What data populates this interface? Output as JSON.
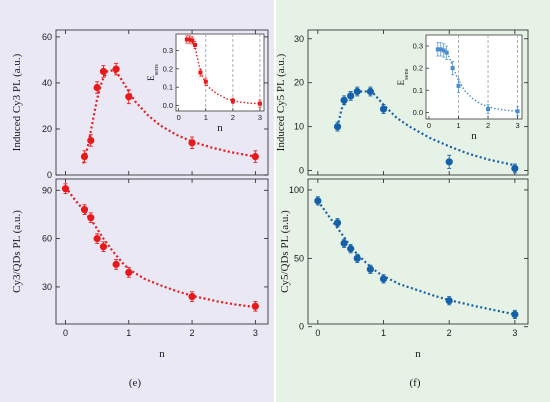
{
  "colors": {
    "left_background": "#eae8f5",
    "right_background": "#e6f2e6",
    "red": "#e8191b",
    "blue": "#1560a8",
    "inset_red": "#e8191b",
    "inset_blue": "#4a8ccc",
    "axis": "#222222",
    "dashed_line": "#999999"
  },
  "panel_labels": [
    "(e)",
    "(f)"
  ],
  "chart_data": [
    {
      "id": "e-top",
      "type": "scatter",
      "color": "red",
      "ylabel": "Induced Cy3 PL (a.u.)",
      "xlabel": "",
      "xlim": [
        -0.15,
        3.2
      ],
      "ylim": [
        0,
        63
      ],
      "xticks": [
        0,
        1,
        2,
        3
      ],
      "yticks": [
        0,
        20,
        40,
        60
      ],
      "show_xtick_labels": false,
      "points": [
        {
          "x": 0.3,
          "y": 8,
          "err": 2.5
        },
        {
          "x": 0.4,
          "y": 15,
          "err": 2.5
        },
        {
          "x": 0.5,
          "y": 38,
          "err": 2.5
        },
        {
          "x": 0.6,
          "y": 45,
          "err": 2.5
        },
        {
          "x": 0.8,
          "y": 46,
          "err": 2.5
        },
        {
          "x": 1.0,
          "y": 34,
          "err": 3
        },
        {
          "x": 2.0,
          "y": 14,
          "err": 2.5
        },
        {
          "x": 3.0,
          "y": 8,
          "err": 2.5
        }
      ],
      "fit": [
        [
          0.28,
          5
        ],
        [
          0.35,
          12
        ],
        [
          0.42,
          22
        ],
        [
          0.5,
          33
        ],
        [
          0.58,
          41
        ],
        [
          0.66,
          45
        ],
        [
          0.75,
          45.5
        ],
        [
          0.85,
          43
        ],
        [
          0.95,
          38.5
        ],
        [
          1.1,
          32
        ],
        [
          1.3,
          26
        ],
        [
          1.5,
          21.5
        ],
        [
          1.75,
          17.5
        ],
        [
          2.0,
          14.5
        ],
        [
          2.3,
          12
        ],
        [
          2.6,
          10
        ],
        [
          3.0,
          8
        ]
      ],
      "inset": {
        "ylabel": "E_sens",
        "xlabel": "n",
        "xlim": [
          -0.1,
          3.15
        ],
        "ylim": [
          -0.03,
          0.39
        ],
        "xticks": [
          0,
          1,
          2,
          3
        ],
        "yticks": [
          0.0,
          0.1,
          0.2,
          0.3
        ],
        "ytick_labels": [
          "0.0",
          "0.1",
          "0.2",
          "0.3"
        ],
        "dashed_x": [
          1,
          2,
          3
        ],
        "points": [
          {
            "x": 0.3,
            "y": 0.36,
            "err": 0.02
          },
          {
            "x": 0.4,
            "y": 0.36,
            "err": 0.02
          },
          {
            "x": 0.5,
            "y": 0.355,
            "err": 0.02
          },
          {
            "x": 0.6,
            "y": 0.33,
            "err": 0.02
          },
          {
            "x": 0.8,
            "y": 0.18,
            "err": 0.02
          },
          {
            "x": 1.0,
            "y": 0.13,
            "err": 0.02
          },
          {
            "x": 2.0,
            "y": 0.025,
            "err": 0.015
          },
          {
            "x": 3.0,
            "y": 0.01,
            "err": 0.02
          }
        ],
        "fit": [
          [
            0.3,
            0.365
          ],
          [
            0.45,
            0.36
          ],
          [
            0.6,
            0.32
          ],
          [
            0.75,
            0.22
          ],
          [
            0.9,
            0.15
          ],
          [
            1.1,
            0.1
          ],
          [
            1.4,
            0.065
          ],
          [
            1.8,
            0.035
          ],
          [
            2.2,
            0.02
          ],
          [
            2.6,
            0.013
          ],
          [
            3.0,
            0.01
          ]
        ]
      }
    },
    {
      "id": "e-bottom",
      "type": "scatter",
      "color": "red",
      "ylabel": "Cy3/QDs PL (a.u.)",
      "xlabel": "n",
      "xlim": [
        -0.15,
        3.2
      ],
      "ylim": [
        7,
        97
      ],
      "xticks": [
        0,
        1,
        2,
        3
      ],
      "yticks": [
        30,
        60,
        90
      ],
      "show_xtick_labels": true,
      "points": [
        {
          "x": 0.0,
          "y": 91,
          "err": 3
        },
        {
          "x": 0.3,
          "y": 78,
          "err": 3
        },
        {
          "x": 0.4,
          "y": 73,
          "err": 3
        },
        {
          "x": 0.5,
          "y": 60,
          "err": 3
        },
        {
          "x": 0.6,
          "y": 55,
          "err": 3
        },
        {
          "x": 0.8,
          "y": 44,
          "err": 3
        },
        {
          "x": 1.0,
          "y": 39,
          "err": 3
        },
        {
          "x": 2.0,
          "y": 24,
          "err": 3
        },
        {
          "x": 3.0,
          "y": 18,
          "err": 3
        }
      ],
      "fit": [
        [
          0.0,
          92
        ],
        [
          0.15,
          84
        ],
        [
          0.3,
          77
        ],
        [
          0.45,
          69
        ],
        [
          0.6,
          60
        ],
        [
          0.75,
          52
        ],
        [
          0.9,
          45
        ],
        [
          1.0,
          41
        ],
        [
          1.25,
          35
        ],
        [
          1.5,
          31
        ],
        [
          1.75,
          27.5
        ],
        [
          2.0,
          24.5
        ],
        [
          2.4,
          21
        ],
        [
          2.7,
          19
        ],
        [
          3.0,
          17.5
        ]
      ]
    },
    {
      "id": "f-top",
      "type": "scatter",
      "color": "blue",
      "ylabel": "Induced Cy5 PL (a.u.)",
      "xlabel": "",
      "xlim": [
        -0.15,
        3.2
      ],
      "ylim": [
        -1,
        32
      ],
      "xticks": [
        0,
        1,
        2,
        3
      ],
      "yticks": [
        0,
        10,
        20,
        30
      ],
      "show_xtick_labels": false,
      "points": [
        {
          "x": 0.3,
          "y": 10,
          "err": 1
        },
        {
          "x": 0.4,
          "y": 16,
          "err": 1
        },
        {
          "x": 0.5,
          "y": 17,
          "err": 1
        },
        {
          "x": 0.6,
          "y": 18,
          "err": 1
        },
        {
          "x": 0.8,
          "y": 18,
          "err": 1
        },
        {
          "x": 1.0,
          "y": 14,
          "err": 1
        },
        {
          "x": 2.0,
          "y": 2,
          "err": 1.5
        },
        {
          "x": 3.0,
          "y": 0.5,
          "err": 1
        }
      ],
      "fit": [
        [
          0.3,
          10
        ],
        [
          0.36,
          14
        ],
        [
          0.45,
          16.5
        ],
        [
          0.55,
          17.5
        ],
        [
          0.65,
          18
        ],
        [
          0.75,
          18
        ],
        [
          0.85,
          17.5
        ],
        [
          1.0,
          15
        ],
        [
          1.2,
          12
        ],
        [
          1.4,
          10
        ],
        [
          1.7,
          7.5
        ],
        [
          2.0,
          5.5
        ],
        [
          2.3,
          3.8
        ],
        [
          2.6,
          2.5
        ],
        [
          3.0,
          1.2
        ]
      ],
      "inset": {
        "ylabel": "E_sens",
        "xlabel": "n",
        "xlim": [
          -0.1,
          3.15
        ],
        "ylim": [
          -0.03,
          0.35
        ],
        "xticks": [
          0,
          1,
          2,
          3
        ],
        "yticks": [
          0.0,
          0.1,
          0.2,
          0.3
        ],
        "ytick_labels": [
          "0.0",
          "0.1",
          "0.2",
          "0.3"
        ],
        "dashed_x": [
          1,
          2,
          3
        ],
        "points": [
          {
            "x": 0.3,
            "y": 0.285,
            "err": 0.03
          },
          {
            "x": 0.4,
            "y": 0.285,
            "err": 0.03
          },
          {
            "x": 0.5,
            "y": 0.28,
            "err": 0.03
          },
          {
            "x": 0.6,
            "y": 0.27,
            "err": 0.03
          },
          {
            "x": 0.8,
            "y": 0.2,
            "err": 0.03
          },
          {
            "x": 1.0,
            "y": 0.12,
            "err": 0.03
          },
          {
            "x": 2.0,
            "y": 0.015,
            "err": 0.02
          },
          {
            "x": 3.0,
            "y": 0.005,
            "err": 0.02
          }
        ],
        "fit": [
          [
            0.3,
            0.29
          ],
          [
            0.5,
            0.285
          ],
          [
            0.65,
            0.26
          ],
          [
            0.8,
            0.21
          ],
          [
            0.95,
            0.16
          ],
          [
            1.2,
            0.1
          ],
          [
            1.5,
            0.06
          ],
          [
            1.8,
            0.035
          ],
          [
            2.2,
            0.018
          ],
          [
            2.6,
            0.01
          ],
          [
            3.0,
            0.005
          ]
        ]
      }
    },
    {
      "id": "f-bottom",
      "type": "scatter",
      "color": "blue",
      "ylabel": "Cy5/QDs PL (a.u.)",
      "xlabel": "n",
      "xlim": [
        -0.15,
        3.2
      ],
      "ylim": [
        2,
        108
      ],
      "xticks": [
        0,
        1,
        2,
        3
      ],
      "yticks": [
        0,
        50,
        100
      ],
      "show_xtick_labels": true,
      "points": [
        {
          "x": 0.0,
          "y": 92,
          "err": 3
        },
        {
          "x": 0.3,
          "y": 76,
          "err": 3
        },
        {
          "x": 0.4,
          "y": 61,
          "err": 3
        },
        {
          "x": 0.5,
          "y": 57,
          "err": 3
        },
        {
          "x": 0.6,
          "y": 50,
          "err": 3
        },
        {
          "x": 0.8,
          "y": 42,
          "err": 3
        },
        {
          "x": 1.0,
          "y": 35,
          "err": 3
        },
        {
          "x": 2.0,
          "y": 19,
          "err": 3
        },
        {
          "x": 3.0,
          "y": 9,
          "err": 3
        }
      ],
      "fit": [
        [
          0.0,
          92
        ],
        [
          0.15,
          82
        ],
        [
          0.3,
          72
        ],
        [
          0.45,
          62
        ],
        [
          0.6,
          53
        ],
        [
          0.75,
          46
        ],
        [
          0.9,
          40
        ],
        [
          1.0,
          37
        ],
        [
          1.25,
          31
        ],
        [
          1.5,
          27
        ],
        [
          1.75,
          23
        ],
        [
          2.0,
          19.5
        ],
        [
          2.4,
          15
        ],
        [
          2.7,
          12
        ],
        [
          3.0,
          9
        ]
      ]
    }
  ]
}
